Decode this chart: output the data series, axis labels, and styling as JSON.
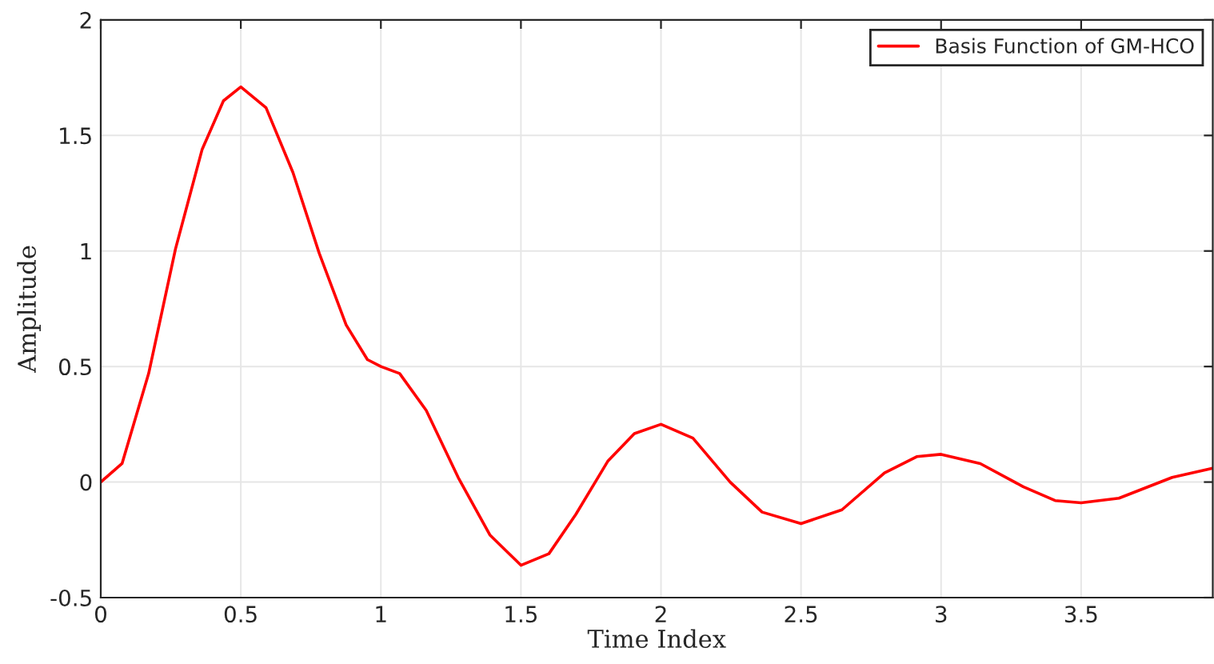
{
  "chart_data": {
    "type": "line",
    "xlabel": "Time Index",
    "ylabel": "Amplitude",
    "xlim": [
      0,
      3.97
    ],
    "ylim": [
      -0.5,
      2
    ],
    "xticks": [
      0,
      0.5,
      1,
      1.5,
      2,
      2.5,
      3,
      3.5
    ],
    "yticks": [
      -0.5,
      0,
      0.5,
      1,
      1.5,
      2
    ],
    "grid": true,
    "legend": "top right",
    "line_style": "solid",
    "marker": "none",
    "series": [
      {
        "name": "Basis Function of GM-HCO",
        "color": "#ff0000",
        "x": [
          0,
          0.076,
          0.171,
          0.267,
          0.362,
          0.438,
          0.5,
          0.59,
          0.686,
          0.78,
          0.876,
          0.952,
          1.0,
          1.067,
          1.162,
          1.276,
          1.39,
          1.5,
          1.6,
          1.696,
          1.81,
          1.905,
          2.0,
          2.114,
          2.247,
          2.361,
          2.5,
          2.646,
          2.798,
          2.913,
          3.0,
          3.14,
          3.293,
          3.407,
          3.5,
          3.635,
          3.825,
          3.97
        ],
        "values": [
          0,
          0.08,
          0.47,
          1.01,
          1.44,
          1.65,
          1.71,
          1.62,
          1.34,
          0.99,
          0.68,
          0.53,
          0.5,
          0.47,
          0.31,
          0.02,
          -0.23,
          -0.36,
          -0.31,
          -0.14,
          0.09,
          0.21,
          0.25,
          0.19,
          0.0,
          -0.13,
          -0.18,
          -0.12,
          0.04,
          0.11,
          0.12,
          0.08,
          -0.02,
          -0.08,
          -0.09,
          -0.07,
          0.02,
          0.06
        ]
      }
    ]
  }
}
